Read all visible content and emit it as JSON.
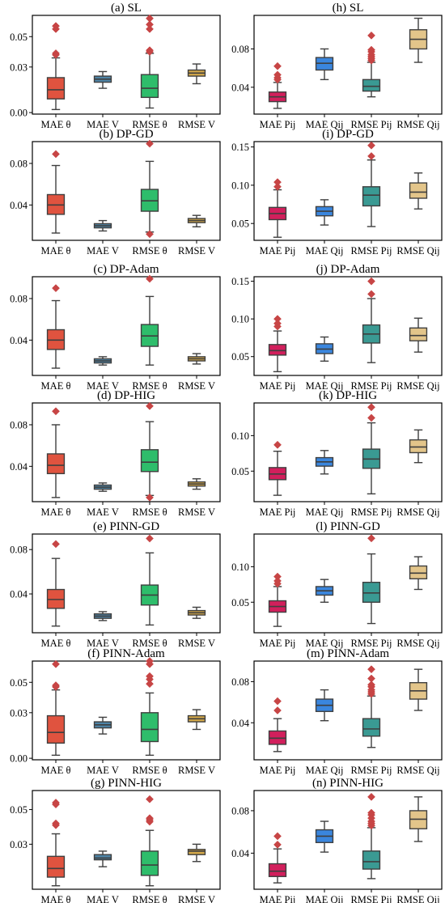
{
  "colors": {
    "frame": "#000000",
    "whisker": "#3f3f3f",
    "red": "#e0533f",
    "steel": "#4e84a6",
    "green": "#2ebd6b",
    "gold": "#d4a94a",
    "crimson": "#d21f5c",
    "blue": "#3a86de",
    "teal": "#3a9a93",
    "tan": "#e3c58a",
    "outlier": "#c74545"
  },
  "chart_data": [
    {
      "type": "box",
      "title": "(a) SL",
      "categories": [
        "MAE θ",
        "MAE V",
        "RMSE θ",
        "RMSE V"
      ],
      "yticks": [
        0.0,
        0.03,
        0.05
      ],
      "ytick_labels": [
        "0.00",
        "0.03",
        "0.05"
      ],
      "ylim": [
        -0.001,
        0.064
      ],
      "series": [
        {
          "q1": 0.009,
          "median": 0.015,
          "q3": 0.023,
          "whisker_low": 0.002,
          "whisker_high": 0.036,
          "outliers": [
            0.038,
            0.039,
            0.055,
            0.057
          ],
          "color": "red"
        },
        {
          "q1": 0.02,
          "median": 0.022,
          "q3": 0.024,
          "whisker_low": 0.016,
          "whisker_high": 0.027,
          "outliers": [],
          "color": "steel"
        },
        {
          "q1": 0.01,
          "median": 0.016,
          "q3": 0.025,
          "whisker_low": 0.003,
          "whisker_high": 0.039,
          "outliers": [
            0.04,
            0.041,
            0.055,
            0.058,
            0.062
          ],
          "color": "green"
        },
        {
          "q1": 0.024,
          "median": 0.026,
          "q3": 0.028,
          "whisker_low": 0.019,
          "whisker_high": 0.032,
          "outliers": [],
          "color": "gold"
        }
      ]
    },
    {
      "type": "box",
      "title": "(h) SL",
      "categories": [
        "MAE Pij",
        "MAE Qij",
        "RMSE Pij",
        "RMSE Qij"
      ],
      "yticks": [
        0.04,
        0.08
      ],
      "ytick_labels": [
        "0.04",
        "0.08"
      ],
      "ylim": [
        0.012,
        0.115
      ],
      "series": [
        {
          "q1": 0.025,
          "median": 0.03,
          "q3": 0.035,
          "whisker_low": 0.018,
          "whisker_high": 0.045,
          "outliers": [
            0.048,
            0.05,
            0.053,
            0.062
          ],
          "color": "crimson"
        },
        {
          "q1": 0.058,
          "median": 0.065,
          "q3": 0.071,
          "whisker_low": 0.048,
          "whisker_high": 0.08,
          "outliers": [],
          "color": "blue"
        },
        {
          "q1": 0.036,
          "median": 0.041,
          "q3": 0.048,
          "whisker_low": 0.03,
          "whisker_high": 0.066,
          "outliers": [
            0.068,
            0.07,
            0.072,
            0.074,
            0.077,
            0.079,
            0.094
          ],
          "color": "teal"
        },
        {
          "q1": 0.08,
          "median": 0.09,
          "q3": 0.1,
          "whisker_low": 0.066,
          "whisker_high": 0.112,
          "outliers": [],
          "color": "tan"
        }
      ]
    },
    {
      "type": "box",
      "title": "(b) DP-GD",
      "categories": [
        "MAE θ",
        "MAE V",
        "RMSE θ",
        "RMSE V"
      ],
      "yticks": [
        0.04,
        0.08
      ],
      "ytick_labels": [
        "0.04",
        "0.08"
      ],
      "ylim": [
        0.006,
        0.101
      ],
      "series": [
        {
          "q1": 0.031,
          "median": 0.04,
          "q3": 0.05,
          "whisker_low": 0.013,
          "whisker_high": 0.078,
          "outliers": [
            0.089
          ],
          "color": "red"
        },
        {
          "q1": 0.018,
          "median": 0.02,
          "q3": 0.022,
          "whisker_low": 0.015,
          "whisker_high": 0.025,
          "outliers": [],
          "color": "steel"
        },
        {
          "q1": 0.034,
          "median": 0.044,
          "q3": 0.055,
          "whisker_low": 0.014,
          "whisker_high": 0.082,
          "outliers": [
            0.012,
            0.099
          ],
          "color": "green"
        },
        {
          "q1": 0.023,
          "median": 0.025,
          "q3": 0.027,
          "whisker_low": 0.019,
          "whisker_high": 0.03,
          "outliers": [],
          "color": "gold"
        }
      ]
    },
    {
      "type": "box",
      "title": "(i) DP-GD",
      "categories": [
        "MAE Pij",
        "MAE Qij",
        "RMSE Pij",
        "RMSE Qij"
      ],
      "yticks": [
        0.05,
        0.1,
        0.15
      ],
      "ytick_labels": [
        "0.05",
        "0.10",
        "0.15"
      ],
      "ylim": [
        0.028,
        0.157
      ],
      "series": [
        {
          "q1": 0.055,
          "median": 0.063,
          "q3": 0.071,
          "whisker_low": 0.032,
          "whisker_high": 0.094,
          "outliers": [
            0.098,
            0.104
          ],
          "color": "crimson"
        },
        {
          "q1": 0.06,
          "median": 0.066,
          "q3": 0.072,
          "whisker_low": 0.048,
          "whisker_high": 0.081,
          "outliers": [],
          "color": "blue"
        },
        {
          "q1": 0.073,
          "median": 0.087,
          "q3": 0.098,
          "whisker_low": 0.046,
          "whisker_high": 0.133,
          "outliers": [
            0.138,
            0.152
          ],
          "color": "teal"
        },
        {
          "q1": 0.083,
          "median": 0.091,
          "q3": 0.103,
          "whisker_low": 0.069,
          "whisker_high": 0.116,
          "outliers": [],
          "color": "tan"
        }
      ]
    },
    {
      "type": "box",
      "title": "(c) DP-Adam",
      "categories": [
        "MAE θ",
        "MAE V",
        "RMSE θ",
        "RMSE V"
      ],
      "yticks": [
        0.04,
        0.08
      ],
      "ytick_labels": [
        "0.04",
        "0.08"
      ],
      "ylim": [
        0.006,
        0.101
      ],
      "series": [
        {
          "q1": 0.031,
          "median": 0.04,
          "q3": 0.05,
          "whisker_low": 0.013,
          "whisker_high": 0.078,
          "outliers": [
            0.09
          ],
          "color": "red"
        },
        {
          "q1": 0.018,
          "median": 0.02,
          "q3": 0.022,
          "whisker_low": 0.016,
          "whisker_high": 0.024,
          "outliers": [],
          "color": "steel"
        },
        {
          "q1": 0.034,
          "median": 0.044,
          "q3": 0.055,
          "whisker_low": 0.016,
          "whisker_high": 0.082,
          "outliers": [
            0.099
          ],
          "color": "green"
        },
        {
          "q1": 0.02,
          "median": 0.022,
          "q3": 0.024,
          "whisker_low": 0.017,
          "whisker_high": 0.027,
          "outliers": [],
          "color": "gold"
        }
      ]
    },
    {
      "type": "box",
      "title": "(j) DP-Adam",
      "categories": [
        "MAE Pij",
        "MAE Qij",
        "RMSE Pij",
        "RMSE Qij"
      ],
      "yticks": [
        0.05,
        0.1,
        0.15
      ],
      "ytick_labels": [
        "0.05",
        "0.10",
        "0.15"
      ],
      "ylim": [
        0.025,
        0.156
      ],
      "series": [
        {
          "q1": 0.052,
          "median": 0.058,
          "q3": 0.066,
          "whisker_low": 0.03,
          "whisker_high": 0.084,
          "outliers": [
            0.09,
            0.094,
            0.1
          ],
          "color": "crimson"
        },
        {
          "q1": 0.054,
          "median": 0.06,
          "q3": 0.067,
          "whisker_low": 0.044,
          "whisker_high": 0.076,
          "outliers": [],
          "color": "blue"
        },
        {
          "q1": 0.068,
          "median": 0.08,
          "q3": 0.092,
          "whisker_low": 0.042,
          "whisker_high": 0.127,
          "outliers": [
            0.133,
            0.15
          ],
          "color": "teal"
        },
        {
          "q1": 0.071,
          "median": 0.078,
          "q3": 0.088,
          "whisker_low": 0.056,
          "whisker_high": 0.101,
          "outliers": [],
          "color": "tan"
        }
      ]
    },
    {
      "type": "box",
      "title": "(d) DP-HIG",
      "categories": [
        "MAE θ",
        "MAE V",
        "RMSE θ",
        "RMSE V"
      ],
      "yticks": [
        0.04,
        0.08
      ],
      "ytick_labels": [
        "0.04",
        "0.08"
      ],
      "ylim": [
        0.006,
        0.101
      ],
      "series": [
        {
          "q1": 0.033,
          "median": 0.041,
          "q3": 0.052,
          "whisker_low": 0.01,
          "whisker_high": 0.08,
          "outliers": [
            0.093
          ],
          "color": "red"
        },
        {
          "q1": 0.018,
          "median": 0.02,
          "q3": 0.022,
          "whisker_low": 0.016,
          "whisker_high": 0.024,
          "outliers": [],
          "color": "steel"
        },
        {
          "q1": 0.035,
          "median": 0.044,
          "q3": 0.056,
          "whisker_low": 0.012,
          "whisker_high": 0.083,
          "outliers": [
            0.01,
            0.098
          ],
          "color": "green"
        },
        {
          "q1": 0.021,
          "median": 0.023,
          "q3": 0.025,
          "whisker_low": 0.018,
          "whisker_high": 0.028,
          "outliers": [],
          "color": "gold"
        }
      ]
    },
    {
      "type": "box",
      "title": "(k) DP-HIG",
      "categories": [
        "MAE Pij",
        "MAE Qij",
        "RMSE Pij",
        "RMSE Qij"
      ],
      "yticks": [
        0.05,
        0.1
      ],
      "ytick_labels": [
        "0.05",
        "0.10"
      ],
      "ylim": [
        0.007,
        0.146
      ],
      "series": [
        {
          "q1": 0.038,
          "median": 0.046,
          "q3": 0.055,
          "whisker_low": 0.016,
          "whisker_high": 0.078,
          "outliers": [
            0.087
          ],
          "color": "crimson"
        },
        {
          "q1": 0.057,
          "median": 0.063,
          "q3": 0.069,
          "whisker_low": 0.046,
          "whisker_high": 0.079,
          "outliers": [],
          "color": "blue"
        },
        {
          "q1": 0.054,
          "median": 0.067,
          "q3": 0.081,
          "whisker_low": 0.018,
          "whisker_high": 0.118,
          "outliers": [
            0.125,
            0.14
          ],
          "color": "teal"
        },
        {
          "q1": 0.076,
          "median": 0.084,
          "q3": 0.094,
          "whisker_low": 0.062,
          "whisker_high": 0.108,
          "outliers": [],
          "color": "tan"
        }
      ]
    },
    {
      "type": "box",
      "title": "(e) PINN-GD",
      "categories": [
        "MAE θ",
        "MAE V",
        "RMSE θ",
        "RMSE V"
      ],
      "yticks": [
        0.04,
        0.08
      ],
      "ytick_labels": [
        "0.04",
        "0.08"
      ],
      "ylim": [
        0.005,
        0.094
      ],
      "series": [
        {
          "q1": 0.027,
          "median": 0.035,
          "q3": 0.044,
          "whisker_low": 0.011,
          "whisker_high": 0.072,
          "outliers": [
            0.085
          ],
          "color": "red"
        },
        {
          "q1": 0.018,
          "median": 0.02,
          "q3": 0.022,
          "whisker_low": 0.016,
          "whisker_high": 0.024,
          "outliers": [],
          "color": "steel"
        },
        {
          "q1": 0.03,
          "median": 0.039,
          "q3": 0.048,
          "whisker_low": 0.012,
          "whisker_high": 0.077,
          "outliers": [
            0.09
          ],
          "color": "green"
        },
        {
          "q1": 0.021,
          "median": 0.023,
          "q3": 0.025,
          "whisker_low": 0.018,
          "whisker_high": 0.028,
          "outliers": [],
          "color": "gold"
        }
      ]
    },
    {
      "type": "box",
      "title": "(l) PINN-GD",
      "categories": [
        "MAE Pij",
        "MAE Qij",
        "RMSE Pij",
        "RMSE Qij"
      ],
      "yticks": [
        0.05,
        0.1
      ],
      "ytick_labels": [
        "0.05",
        "0.10"
      ],
      "ylim": [
        0.007,
        0.146
      ],
      "series": [
        {
          "q1": 0.036,
          "median": 0.044,
          "q3": 0.052,
          "whisker_low": 0.016,
          "whisker_high": 0.072,
          "outliers": [
            0.076,
            0.08,
            0.086
          ],
          "color": "crimson"
        },
        {
          "q1": 0.06,
          "median": 0.066,
          "q3": 0.072,
          "whisker_low": 0.05,
          "whisker_high": 0.082,
          "outliers": [],
          "color": "blue"
        },
        {
          "q1": 0.05,
          "median": 0.063,
          "q3": 0.078,
          "whisker_low": 0.02,
          "whisker_high": 0.118,
          "outliers": [
            0.14
          ],
          "color": "teal"
        },
        {
          "q1": 0.083,
          "median": 0.091,
          "q3": 0.101,
          "whisker_low": 0.068,
          "whisker_high": 0.114,
          "outliers": [],
          "color": "tan"
        }
      ]
    },
    {
      "type": "box",
      "title": "(f) PINN-Adam",
      "categories": [
        "MAE θ",
        "MAE V",
        "RMSE θ",
        "RMSE V"
      ],
      "yticks": [
        0.0,
        0.03,
        0.05
      ],
      "ytick_labels": [
        "0.00",
        "0.03",
        "0.05"
      ],
      "ylim": [
        -0.001,
        0.064
      ],
      "series": [
        {
          "q1": 0.01,
          "median": 0.017,
          "q3": 0.028,
          "whisker_low": 0.002,
          "whisker_high": 0.045,
          "outliers": [
            0.047,
            0.048,
            0.062
          ],
          "color": "red"
        },
        {
          "q1": 0.02,
          "median": 0.022,
          "q3": 0.024,
          "whisker_low": 0.016,
          "whisker_high": 0.027,
          "outliers": [],
          "color": "steel"
        },
        {
          "q1": 0.011,
          "median": 0.019,
          "q3": 0.03,
          "whisker_low": 0.002,
          "whisker_high": 0.043,
          "outliers": [
            0.049,
            0.052,
            0.054,
            0.062,
            0.064
          ],
          "color": "green"
        },
        {
          "q1": 0.024,
          "median": 0.026,
          "q3": 0.028,
          "whisker_low": 0.019,
          "whisker_high": 0.032,
          "outliers": [],
          "color": "gold"
        }
      ]
    },
    {
      "type": "box",
      "title": "(m) PINN-Adam",
      "categories": [
        "MAE Pij",
        "MAE Qij",
        "RMSE Pij",
        "RMSE Qij"
      ],
      "yticks": [
        0.04,
        0.08
      ],
      "ytick_labels": [
        "0.04",
        "0.08"
      ],
      "ylim": [
        0.004,
        0.1
      ],
      "series": [
        {
          "q1": 0.019,
          "median": 0.025,
          "q3": 0.032,
          "whisker_low": 0.012,
          "whisker_high": 0.044,
          "outliers": [
            0.052,
            0.061
          ],
          "color": "crimson"
        },
        {
          "q1": 0.051,
          "median": 0.057,
          "q3": 0.063,
          "whisker_low": 0.042,
          "whisker_high": 0.072,
          "outliers": [],
          "color": "blue"
        },
        {
          "q1": 0.027,
          "median": 0.034,
          "q3": 0.044,
          "whisker_low": 0.016,
          "whisker_high": 0.066,
          "outliers": [
            0.068,
            0.07,
            0.072,
            0.075,
            0.077,
            0.083,
            0.092
          ],
          "color": "teal"
        },
        {
          "q1": 0.063,
          "median": 0.071,
          "q3": 0.079,
          "whisker_low": 0.052,
          "whisker_high": 0.092,
          "outliers": [],
          "color": "tan"
        }
      ]
    },
    {
      "type": "box",
      "title": "(g) PINN-HIG",
      "categories": [
        "MAE θ",
        "MAE V",
        "RMSE θ",
        "RMSE V"
      ],
      "yticks": [
        0.03,
        0.05
      ],
      "ytick_labels": [
        "0.03",
        "0.05"
      ],
      "ylim": [
        0.004,
        0.061
      ],
      "series": [
        {
          "q1": 0.011,
          "median": 0.016,
          "q3": 0.023,
          "whisker_low": 0.006,
          "whisker_high": 0.036,
          "outliers": [
            0.041,
            0.042,
            0.053,
            0.054
          ],
          "color": "red"
        },
        {
          "q1": 0.021,
          "median": 0.022,
          "q3": 0.024,
          "whisker_low": 0.017,
          "whisker_high": 0.026,
          "outliers": [],
          "color": "steel"
        },
        {
          "q1": 0.012,
          "median": 0.018,
          "q3": 0.026,
          "whisker_low": 0.006,
          "whisker_high": 0.038,
          "outliers": [
            0.043,
            0.044,
            0.045,
            0.056
          ],
          "color": "green"
        },
        {
          "q1": 0.024,
          "median": 0.026,
          "q3": 0.027,
          "whisker_low": 0.02,
          "whisker_high": 0.03,
          "outliers": [],
          "color": "gold"
        }
      ]
    },
    {
      "type": "box",
      "title": "(n) PINN-HIG",
      "categories": [
        "MAE Pij",
        "MAE Qij",
        "RMSE Pij",
        "RMSE Qij"
      ],
      "yticks": [
        0.04,
        0.08
      ],
      "ytick_labels": [
        "0.04",
        "0.08"
      ],
      "ylim": [
        0.006,
        0.099
      ],
      "series": [
        {
          "q1": 0.018,
          "median": 0.023,
          "q3": 0.03,
          "whisker_low": 0.012,
          "whisker_high": 0.044,
          "outliers": [
            0.048,
            0.056
          ],
          "color": "crimson"
        },
        {
          "q1": 0.05,
          "median": 0.056,
          "q3": 0.062,
          "whisker_low": 0.041,
          "whisker_high": 0.07,
          "outliers": [],
          "color": "blue"
        },
        {
          "q1": 0.025,
          "median": 0.032,
          "q3": 0.042,
          "whisker_low": 0.016,
          "whisker_high": 0.064,
          "outliers": [
            0.066,
            0.068,
            0.07,
            0.073,
            0.076,
            0.078,
            0.093
          ],
          "color": "teal"
        },
        {
          "q1": 0.063,
          "median": 0.072,
          "q3": 0.08,
          "whisker_low": 0.051,
          "whisker_high": 0.093,
          "outliers": [],
          "color": "tan"
        }
      ]
    }
  ]
}
